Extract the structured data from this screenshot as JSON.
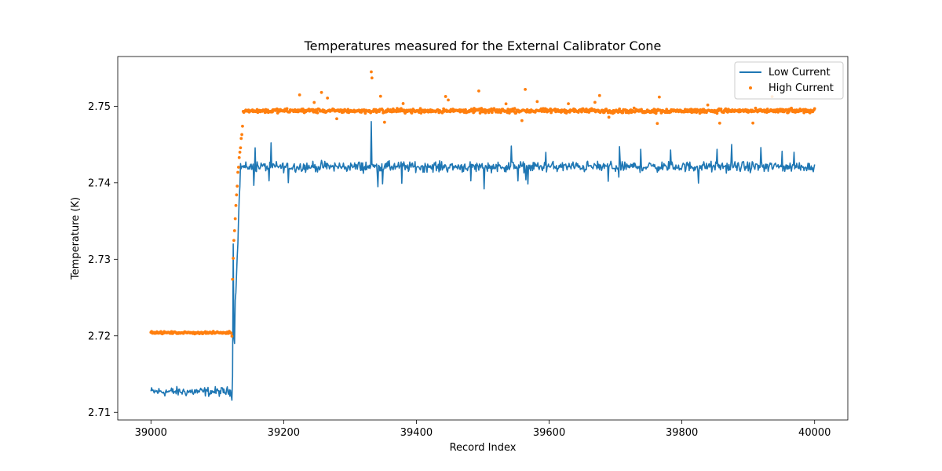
{
  "chart_data": {
    "type": "line",
    "title": "Temperatures measured for the External Calibrator Cone",
    "xlabel": "Record Index",
    "ylabel": "Temperature (K)",
    "xlim": [
      38950,
      40050
    ],
    "ylim": [
      2.709,
      2.7565
    ],
    "xticks": [
      39000,
      39200,
      39400,
      39600,
      39800,
      40000
    ],
    "yticks": [
      2.71,
      2.72,
      2.73,
      2.74,
      2.75
    ],
    "ytick_labels": [
      "2.71",
      "2.72",
      "2.73",
      "2.74",
      "2.75"
    ],
    "grid": false,
    "legend_position": "top-right",
    "series": [
      {
        "name": "Low Current",
        "style": "line",
        "color": "#1f77b4",
        "x_start": 39000,
        "x_end": 40000,
        "segments": [
          {
            "x_from": 39000,
            "x_to": 39122,
            "baseline": 2.7127,
            "noise": 0.0009
          },
          {
            "x_from": 39122,
            "x_to": 39135,
            "transition_to": 2.742,
            "spike": [
              39123,
              2.732
            ],
            "dip": [
              39126,
              2.719
            ]
          },
          {
            "x_from": 39135,
            "x_to": 40000,
            "baseline": 2.7421,
            "noise": 0.001
          }
        ],
        "notable_points": [
          [
            39124,
            2.732
          ],
          [
            39126,
            2.719
          ],
          [
            39332,
            2.748
          ],
          [
            39875,
            2.745
          ],
          [
            39502,
            2.7392
          ]
        ]
      },
      {
        "name": "High Current",
        "style": "scatter",
        "color": "#ff7f0e",
        "x_start": 39000,
        "x_end": 40000,
        "segments": [
          {
            "x_from": 39000,
            "x_to": 39122,
            "baseline": 2.7204,
            "noise": 0.0002
          },
          {
            "x_from": 39122,
            "x_to": 39140,
            "transition_to": 2.7495
          },
          {
            "x_from": 39140,
            "x_to": 40000,
            "baseline": 2.7494,
            "noise": 0.0004
          }
        ],
        "notable_points": [
          [
            39332,
            2.7545
          ],
          [
            39333,
            2.7537
          ],
          [
            39257,
            2.7518
          ],
          [
            39494,
            2.752
          ],
          [
            39564,
            2.7522
          ],
          [
            39676,
            2.7514
          ],
          [
            39766,
            2.7512
          ]
        ]
      }
    ]
  }
}
